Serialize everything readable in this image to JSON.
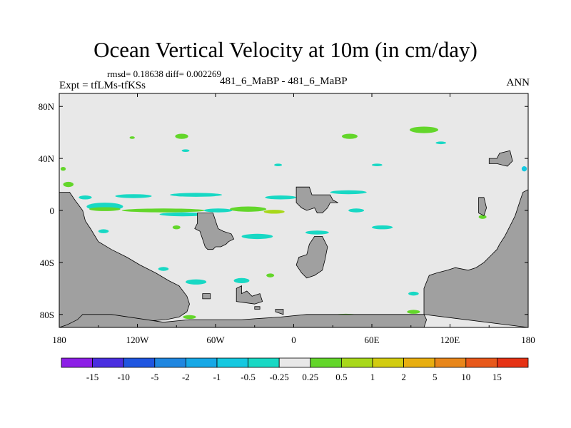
{
  "chart_data": {
    "type": "heatmap",
    "title": "Ocean Vertical Velocity at 10m (in cm/day)",
    "stats_line": "rmsd= 0.18638 diff= 0.002269",
    "experiment_label": "Expt = tfLMs-tfKSs",
    "case_label": "481_6_MaBP - 481_6_MaBP",
    "period_label": "ANN",
    "x_axis": {
      "range": [
        -180,
        180
      ],
      "ticks": [
        {
          "value": -180,
          "label": "180"
        },
        {
          "value": -120,
          "label": "120W"
        },
        {
          "value": -60,
          "label": "60W"
        },
        {
          "value": 0,
          "label": "0"
        },
        {
          "value": 60,
          "label": "60E"
        },
        {
          "value": 120,
          "label": "120E"
        },
        {
          "value": 180,
          "label": "180"
        }
      ]
    },
    "y_axis": {
      "range": [
        -90,
        90
      ],
      "ticks": [
        {
          "value": 80,
          "label": "80N"
        },
        {
          "value": 40,
          "label": "40N"
        },
        {
          "value": 0,
          "label": "0"
        },
        {
          "value": -40,
          "label": "40S"
        },
        {
          "value": -80,
          "label": "80S"
        }
      ]
    },
    "colorbar": {
      "labels": [
        "-15",
        "-10",
        "-5",
        "-2",
        "-1",
        "-0.5",
        "-0.25",
        "0.25",
        "0.5",
        "1",
        "2",
        "5",
        "10",
        "15"
      ],
      "colors": [
        "#8c1ee6",
        "#4a2ee0",
        "#1f55e0",
        "#1f86e0",
        "#16a8e6",
        "#14c8e0",
        "#18d8c4",
        "#e8e8e8",
        "#63d62a",
        "#a8d81a",
        "#d2cc10",
        "#e8ae10",
        "#e8861a",
        "#e8581a",
        "#e63214"
      ]
    },
    "background_value_bin": "-0.25 to 0.25",
    "patches": [
      {
        "lon": -124,
        "lat": 56,
        "w": 4,
        "h": 2,
        "c": 8
      },
      {
        "lon": -86,
        "lat": 57,
        "w": 10,
        "h": 4,
        "c": 8
      },
      {
        "lon": -83,
        "lat": 46,
        "w": 6,
        "h": 2,
        "c": 6
      },
      {
        "lon": 43,
        "lat": 57,
        "w": 12,
        "h": 4,
        "c": 8
      },
      {
        "lon": 100,
        "lat": 62,
        "w": 22,
        "h": 5,
        "c": 8
      },
      {
        "lon": 113,
        "lat": 52,
        "w": 8,
        "h": 2,
        "c": 6
      },
      {
        "lon": 64,
        "lat": 35,
        "w": 8,
        "h": 2,
        "c": 6
      },
      {
        "lon": -12,
        "lat": 35,
        "w": 6,
        "h": 2,
        "c": 6
      },
      {
        "lon": -177,
        "lat": 32,
        "w": 4,
        "h": 3,
        "c": 8
      },
      {
        "lon": 177,
        "lat": 32,
        "w": 4,
        "h": 4,
        "c": 5
      },
      {
        "lon": -173,
        "lat": 20,
        "w": 8,
        "h": 4,
        "c": 8
      },
      {
        "lon": -160,
        "lat": 10,
        "w": 10,
        "h": 3,
        "c": 6
      },
      {
        "lon": -123,
        "lat": 11,
        "w": 28,
        "h": 3,
        "c": 6
      },
      {
        "lon": -75,
        "lat": 12,
        "w": 40,
        "h": 3,
        "c": 6
      },
      {
        "lon": -10,
        "lat": 10,
        "w": 24,
        "h": 3,
        "c": 6
      },
      {
        "lon": 42,
        "lat": 14,
        "w": 28,
        "h": 3,
        "c": 6
      },
      {
        "lon": -145,
        "lat": 3,
        "w": 28,
        "h": 6,
        "c": 6
      },
      {
        "lon": -145,
        "lat": 1,
        "w": 24,
        "h": 3,
        "c": 8
      },
      {
        "lon": -100,
        "lat": 0,
        "w": 64,
        "h": 3,
        "c": 8
      },
      {
        "lon": -85,
        "lat": -3,
        "w": 36,
        "h": 3,
        "c": 6
      },
      {
        "lon": -58,
        "lat": 0,
        "w": 22,
        "h": 3,
        "c": 6
      },
      {
        "lon": -35,
        "lat": 1,
        "w": 28,
        "h": 4,
        "c": 8
      },
      {
        "lon": -15,
        "lat": -1,
        "w": 16,
        "h": 3,
        "c": 9
      },
      {
        "lon": 48,
        "lat": 0,
        "w": 12,
        "h": 3,
        "c": 6
      },
      {
        "lon": 18,
        "lat": -17,
        "w": 18,
        "h": 3,
        "c": 6
      },
      {
        "lon": 68,
        "lat": -13,
        "w": 16,
        "h": 3,
        "c": 6
      },
      {
        "lon": -146,
        "lat": -16,
        "w": 8,
        "h": 3,
        "c": 6
      },
      {
        "lon": -28,
        "lat": -20,
        "w": 24,
        "h": 4,
        "c": 6
      },
      {
        "lon": -90,
        "lat": -13,
        "w": 6,
        "h": 3,
        "c": 8
      },
      {
        "lon": 145,
        "lat": -5,
        "w": 6,
        "h": 3,
        "c": 8
      },
      {
        "lon": -142,
        "lat": -46,
        "w": 12,
        "h": 3,
        "c": 6
      },
      {
        "lon": -100,
        "lat": -45,
        "w": 8,
        "h": 3,
        "c": 6
      },
      {
        "lon": -75,
        "lat": -55,
        "w": 16,
        "h": 4,
        "c": 6
      },
      {
        "lon": -40,
        "lat": -54,
        "w": 12,
        "h": 4,
        "c": 6
      },
      {
        "lon": -18,
        "lat": -50,
        "w": 6,
        "h": 3,
        "c": 8
      },
      {
        "lon": -80,
        "lat": -82,
        "w": 10,
        "h": 3,
        "c": 8
      },
      {
        "lon": 40,
        "lat": -81,
        "w": 20,
        "h": 3,
        "c": 8
      },
      {
        "lon": 92,
        "lat": -78,
        "w": 10,
        "h": 3,
        "c": 8
      },
      {
        "lon": 92,
        "lat": -64,
        "w": 8,
        "h": 3,
        "c": 6
      }
    ],
    "land": [
      [
        [
          -180,
          14
        ],
        [
          -172,
          14
        ],
        [
          -168,
          8
        ],
        [
          -162,
          0
        ],
        [
          -160,
          -8
        ],
        [
          -156,
          -14
        ],
        [
          -150,
          -24
        ],
        [
          -140,
          -30
        ],
        [
          -128,
          -36
        ],
        [
          -118,
          -42
        ],
        [
          -106,
          -48
        ],
        [
          -96,
          -54
        ],
        [
          -88,
          -58
        ],
        [
          -82,
          -66
        ],
        [
          -80,
          -72
        ],
        [
          -82,
          -78
        ],
        [
          -88,
          -82
        ],
        [
          -98,
          -84
        ],
        [
          -180,
          -90
        ]
      ],
      [
        [
          -74,
          -2
        ],
        [
          -62,
          -2
        ],
        [
          -60,
          -8
        ],
        [
          -58,
          -14
        ],
        [
          -54,
          -16
        ],
        [
          -48,
          -18
        ],
        [
          -46,
          -22
        ],
        [
          -50,
          -24
        ],
        [
          -52,
          -26
        ],
        [
          -56,
          -28
        ],
        [
          -60,
          -28
        ],
        [
          -62,
          -30
        ],
        [
          -66,
          -30
        ],
        [
          -68,
          -28
        ],
        [
          -70,
          -22
        ],
        [
          -72,
          -16
        ],
        [
          -76,
          -14
        ],
        [
          -74,
          -10
        ]
      ],
      [
        [
          -40,
          -58
        ],
        [
          -40,
          -64
        ],
        [
          -36,
          -62
        ],
        [
          -32,
          -66
        ],
        [
          -26,
          -64
        ],
        [
          -24,
          -70
        ],
        [
          -30,
          -72
        ],
        [
          -44,
          -70
        ],
        [
          -44,
          -60
        ]
      ],
      [
        [
          2,
          18
        ],
        [
          12,
          18
        ],
        [
          14,
          12
        ],
        [
          28,
          12
        ],
        [
          30,
          8
        ],
        [
          34,
          6
        ],
        [
          28,
          6
        ],
        [
          26,
          2
        ],
        [
          24,
          0
        ],
        [
          22,
          -2
        ],
        [
          18,
          -2
        ],
        [
          16,
          2
        ],
        [
          10,
          0
        ],
        [
          6,
          2
        ],
        [
          2,
          6
        ]
      ],
      [
        [
          2,
          -42
        ],
        [
          4,
          -36
        ],
        [
          10,
          -34
        ],
        [
          12,
          -26
        ],
        [
          16,
          -20
        ],
        [
          22,
          -20
        ],
        [
          26,
          -28
        ],
        [
          24,
          -38
        ],
        [
          22,
          -46
        ],
        [
          16,
          -50
        ],
        [
          10,
          -52
        ],
        [
          6,
          -48
        ]
      ],
      [
        [
          -180,
          -90
        ],
        [
          -174,
          -88
        ],
        [
          -170,
          -86
        ],
        [
          -166,
          -84
        ],
        [
          -164,
          -82
        ],
        [
          -162,
          -80
        ],
        [
          -150,
          -80
        ],
        [
          -140,
          -80
        ],
        [
          -100,
          -86
        ],
        [
          -80,
          -84
        ],
        [
          -40,
          -84
        ],
        [
          -10,
          -82
        ],
        [
          10,
          -80
        ],
        [
          30,
          -80
        ],
        [
          60,
          -80
        ],
        [
          80,
          -80
        ],
        [
          100,
          -80
        ],
        [
          102,
          -84
        ],
        [
          100,
          -90
        ]
      ],
      [
        [
          100,
          -80
        ],
        [
          100,
          -60
        ],
        [
          104,
          -50
        ],
        [
          110,
          -48
        ],
        [
          118,
          -46
        ],
        [
          124,
          -44
        ],
        [
          134,
          -46
        ],
        [
          140,
          -44
        ],
        [
          146,
          -40
        ],
        [
          152,
          -34
        ],
        [
          156,
          -30
        ],
        [
          158,
          -26
        ],
        [
          162,
          -20
        ],
        [
          166,
          -12
        ],
        [
          170,
          -4
        ],
        [
          174,
          8
        ],
        [
          176,
          14
        ],
        [
          180,
          16
        ],
        [
          180,
          -90
        ]
      ],
      [
        [
          142,
          10
        ],
        [
          146,
          10
        ],
        [
          148,
          2
        ],
        [
          146,
          -4
        ],
        [
          142,
          -2
        ]
      ],
      [
        [
          150,
          40
        ],
        [
          156,
          40
        ],
        [
          158,
          44
        ],
        [
          166,
          46
        ],
        [
          168,
          38
        ],
        [
          164,
          34
        ],
        [
          156,
          36
        ],
        [
          150,
          36
        ]
      ],
      [
        [
          -70,
          -64
        ],
        [
          -64,
          -64
        ],
        [
          -64,
          -68
        ],
        [
          -70,
          -68
        ]
      ],
      [
        [
          -30,
          -74
        ],
        [
          -26,
          -74
        ],
        [
          -26,
          -76
        ],
        [
          -30,
          -76
        ]
      ],
      [
        [
          -14,
          -76
        ],
        [
          -8,
          -76
        ],
        [
          -8,
          -80
        ],
        [
          -14,
          -78
        ]
      ]
    ]
  }
}
